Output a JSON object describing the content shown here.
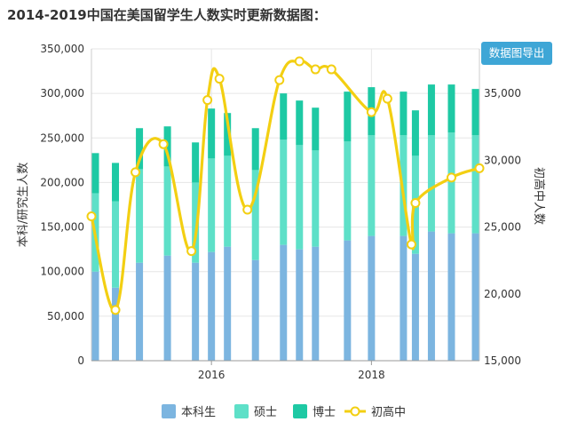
{
  "title": "2014-2019中国在美国留学生人数实时更新数据图：",
  "export_button": "数据图导出",
  "colors": {
    "undergrad": "#7cb5e0",
    "master": "#5ee0c8",
    "phd": "#1ec9a4",
    "highschool": "#f3cf12"
  },
  "chart_data": {
    "type": "bar",
    "stacked": true,
    "xlabel": "",
    "ylabel": "本科/研究生人数",
    "y2label": "初高中人数",
    "ylim": [
      0,
      350000
    ],
    "y2lim": [
      15000,
      38333
    ],
    "yticks": [
      "0",
      "50,000",
      "100,000",
      "150,000",
      "200,000",
      "250,000",
      "300,000",
      "350,000"
    ],
    "y2ticks": [
      "15,000",
      "20,000",
      "25,000",
      "30,000",
      "35,000"
    ],
    "y2tick_values": [
      15000,
      20000,
      25000,
      30000,
      35000
    ],
    "xticks": [
      {
        "label": "2016",
        "x": 2016.0
      },
      {
        "label": "2018",
        "x": 2018.0
      }
    ],
    "xlim": [
      2014.5,
      2019.35
    ],
    "grid": true,
    "legend_position": "bottom",
    "legend": [
      "本科生",
      "硕士",
      "博士",
      "初高中"
    ],
    "series": [
      {
        "name": "本科生",
        "x": [
          2014.55,
          2014.8,
          2015.1,
          2015.45,
          2015.8,
          2016.0,
          2016.2,
          2016.55,
          2016.9,
          2017.1,
          2017.3,
          2017.7,
          2018.0,
          2018.4,
          2018.55,
          2018.75,
          2019.0,
          2019.3
        ],
        "values": [
          100000,
          82000,
          110000,
          118000,
          110000,
          122000,
          128000,
          113000,
          130000,
          125000,
          128000,
          135000,
          140000,
          140000,
          120000,
          145000,
          143000,
          143000
        ]
      },
      {
        "name": "硕士",
        "x": [
          2014.55,
          2014.8,
          2015.1,
          2015.45,
          2015.8,
          2016.0,
          2016.2,
          2016.55,
          2016.9,
          2017.1,
          2017.3,
          2017.7,
          2018.0,
          2018.4,
          2018.55,
          2018.75,
          2019.0,
          2019.3
        ],
        "values": [
          88000,
          97000,
          105000,
          100000,
          90000,
          105000,
          102000,
          101000,
          118000,
          117000,
          108000,
          111000,
          113000,
          113000,
          110000,
          108000,
          113000,
          110000
        ]
      },
      {
        "name": "博士",
        "x": [
          2014.55,
          2014.8,
          2015.1,
          2015.45,
          2015.8,
          2016.0,
          2016.2,
          2016.55,
          2016.9,
          2017.1,
          2017.3,
          2017.7,
          2018.0,
          2018.4,
          2018.55,
          2018.75,
          2019.0,
          2019.3
        ],
        "values": [
          45000,
          43000,
          46000,
          45000,
          45000,
          56000,
          48000,
          47000,
          52000,
          50000,
          48000,
          56000,
          54000,
          49000,
          51000,
          57000,
          54000,
          52000
        ]
      },
      {
        "name": "初高中",
        "axis": "right",
        "x": [
          2014.5,
          2014.8,
          2015.05,
          2015.4,
          2015.75,
          2015.95,
          2016.1,
          2016.45,
          2016.85,
          2017.1,
          2017.3,
          2017.5,
          2018.0,
          2018.2,
          2018.5,
          2018.55,
          2019.0,
          2019.35
        ],
        "values": [
          25800,
          18800,
          29100,
          31200,
          23200,
          34500,
          36100,
          26300,
          36000,
          37400,
          36800,
          36800,
          33600,
          34600,
          23700,
          26800,
          28700,
          29400
        ]
      }
    ]
  }
}
